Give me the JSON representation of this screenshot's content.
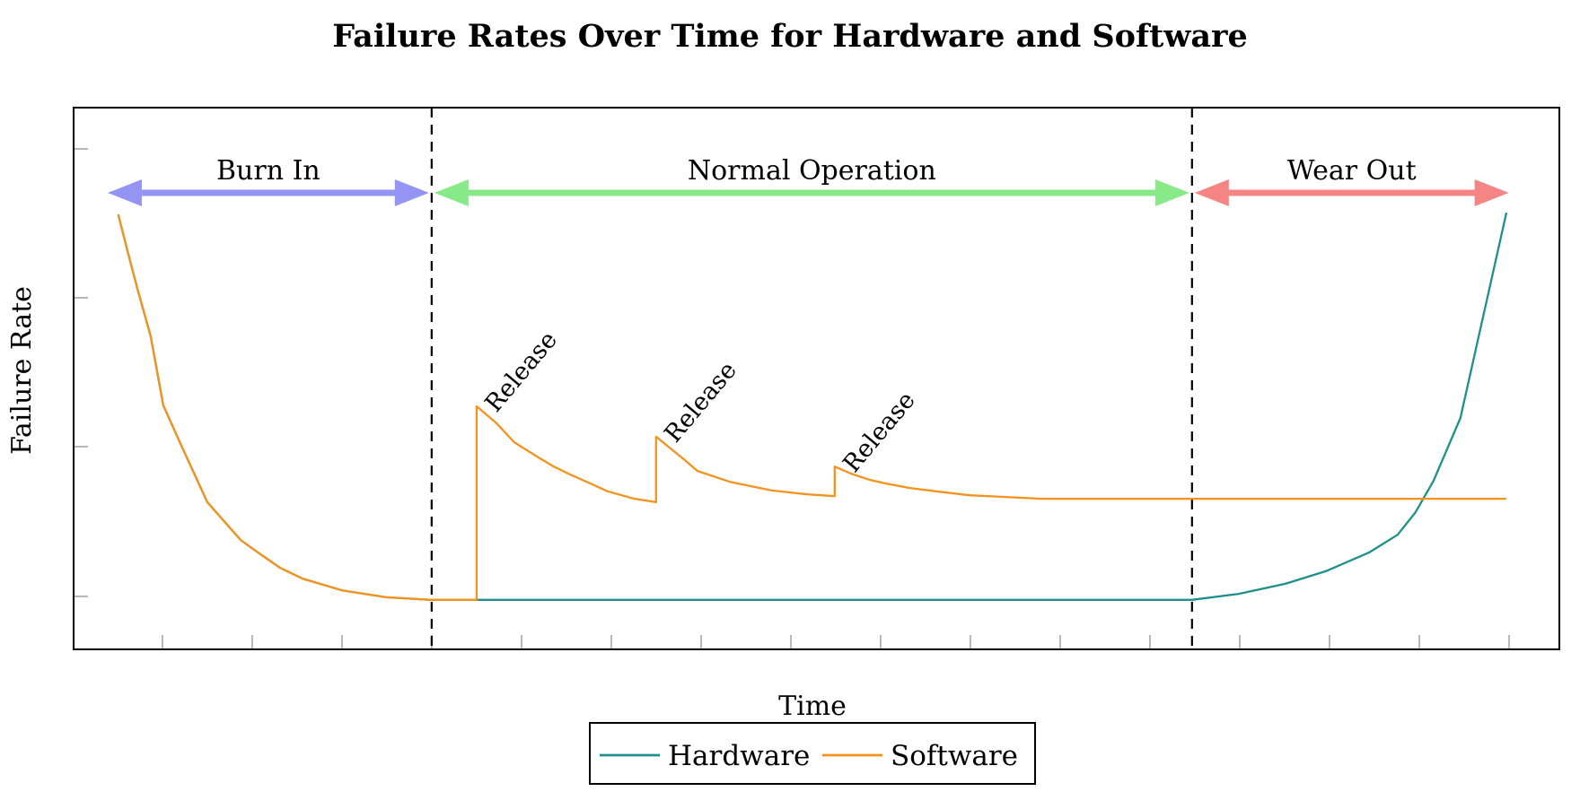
{
  "title": "Failure Rates Over Time for Hardware and Software",
  "x_axis": {
    "label": "Time"
  },
  "y_axis": {
    "label": "Failure Rate"
  },
  "legend": {
    "items": [
      {
        "label": "Hardware",
        "color": "#1e8f8a"
      },
      {
        "label": "Software",
        "color": "#f5921e"
      }
    ]
  },
  "regions": [
    {
      "label": "Burn In",
      "arrow_color": "#9394f3",
      "t_start": 0.0,
      "t_end": 2.257
    },
    {
      "label": "Normal Operation",
      "arrow_color": "#87e987",
      "t_start": 2.257,
      "t_end": 7.736
    },
    {
      "label": "Wear Out",
      "arrow_color": "#f58585",
      "t_start": 7.736,
      "t_end": 10.07
    }
  ],
  "colors": {
    "axis": "#000000",
    "tick": "#a6a6a6",
    "dashed_line": "#000000",
    "background": "#ffffff"
  },
  "chart_data": {
    "type": "line",
    "title": "Failure Rates Over Time for Hardware and Software",
    "xlabel": "Time",
    "ylabel": "Failure Rate",
    "x_range": [
      -0.323,
      10.383
    ],
    "y_range": [
      0,
      1.248
    ],
    "grid": false,
    "legend_position": "below",
    "x_ticks": [
      0.317,
      0.964,
      1.611,
      2.258,
      2.905,
      3.552,
      4.199,
      4.846,
      5.492,
      6.139,
      6.786,
      7.433,
      8.08,
      8.727,
      9.374,
      10.021
    ],
    "y_ticks": [
      0.122,
      0.467,
      0.81,
      1.153
    ],
    "phase_boundaries_t": [
      2.257,
      7.736
    ],
    "annotations": {
      "release_label": "Release",
      "release_points": [
        {
          "t": 2.581,
          "rate": 0.56
        },
        {
          "t": 3.874,
          "rate": 0.49
        },
        {
          "t": 5.161,
          "rate": 0.421
        }
      ]
    },
    "series": [
      {
        "name": "Hardware",
        "color": "#1e8f8a",
        "points": [
          [
            0.0,
            1.0
          ],
          [
            0.071,
            0.911
          ],
          [
            0.136,
            0.831
          ],
          [
            0.233,
            0.721
          ],
          [
            0.323,
            0.562
          ],
          [
            0.44,
            0.479
          ],
          [
            0.64,
            0.339
          ],
          [
            0.88,
            0.252
          ],
          [
            0.97,
            0.231
          ],
          [
            1.164,
            0.188
          ],
          [
            1.326,
            0.163
          ],
          [
            1.611,
            0.136
          ],
          [
            1.928,
            0.12
          ],
          [
            2.251,
            0.114
          ],
          [
            7.736,
            0.114
          ],
          [
            8.073,
            0.128
          ],
          [
            8.409,
            0.151
          ],
          [
            8.7,
            0.18
          ],
          [
            9.011,
            0.223
          ],
          [
            9.218,
            0.264
          ],
          [
            9.347,
            0.316
          ],
          [
            9.476,
            0.388
          ],
          [
            9.67,
            0.533
          ],
          [
            10.0,
            1.004
          ]
        ]
      },
      {
        "name": "Software",
        "color": "#f5921e",
        "points": [
          [
            0.0,
            1.0
          ],
          [
            0.071,
            0.911
          ],
          [
            0.136,
            0.831
          ],
          [
            0.233,
            0.721
          ],
          [
            0.323,
            0.562
          ],
          [
            0.44,
            0.479
          ],
          [
            0.64,
            0.339
          ],
          [
            0.88,
            0.252
          ],
          [
            0.97,
            0.231
          ],
          [
            1.164,
            0.188
          ],
          [
            1.326,
            0.163
          ],
          [
            1.611,
            0.136
          ],
          [
            1.928,
            0.12
          ],
          [
            2.251,
            0.114
          ],
          [
            2.581,
            0.114
          ],
          [
            2.581,
            0.56
          ],
          [
            2.723,
            0.521
          ],
          [
            2.852,
            0.477
          ],
          [
            3.027,
            0.442
          ],
          [
            3.137,
            0.421
          ],
          [
            3.24,
            0.405
          ],
          [
            3.415,
            0.38
          ],
          [
            3.525,
            0.364
          ],
          [
            3.719,
            0.347
          ],
          [
            3.874,
            0.339
          ],
          [
            3.874,
            0.49
          ],
          [
            4.081,
            0.436
          ],
          [
            4.172,
            0.411
          ],
          [
            4.405,
            0.386
          ],
          [
            4.709,
            0.366
          ],
          [
            4.967,
            0.357
          ],
          [
            5.161,
            0.353
          ],
          [
            5.161,
            0.421
          ],
          [
            5.278,
            0.405
          ],
          [
            5.42,
            0.39
          ],
          [
            5.53,
            0.382
          ],
          [
            5.698,
            0.372
          ],
          [
            5.892,
            0.364
          ],
          [
            6.132,
            0.355
          ],
          [
            6.39,
            0.351
          ],
          [
            6.649,
            0.347
          ],
          [
            9.994,
            0.347
          ]
        ]
      }
    ]
  }
}
